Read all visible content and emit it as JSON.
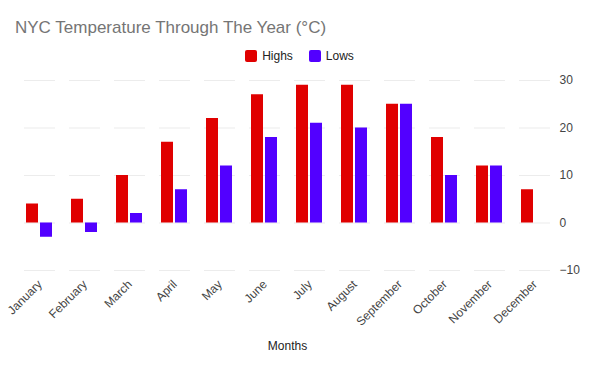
{
  "chart_data": {
    "type": "bar",
    "title": "NYC Temperature Through The Year (°C)",
    "x_label": "Months",
    "categories": [
      "January",
      "February",
      "March",
      "April",
      "May",
      "June",
      "July",
      "August",
      "September",
      "October",
      "November",
      "December"
    ],
    "series": [
      {
        "name": "Highs",
        "color": "#e00000",
        "values": [
          4,
          5,
          10,
          17,
          22,
          27,
          29,
          29,
          25,
          18,
          12,
          7
        ]
      },
      {
        "name": "Lows",
        "color": "#5200ff",
        "values": [
          -3,
          -2,
          2,
          7,
          12,
          18,
          21,
          20,
          25,
          10,
          12,
          0
        ]
      }
    ],
    "ylim": [
      -10,
      30
    ],
    "yticks": [
      -10,
      0,
      10,
      20,
      30
    ],
    "grid": true,
    "legend": "top"
  }
}
